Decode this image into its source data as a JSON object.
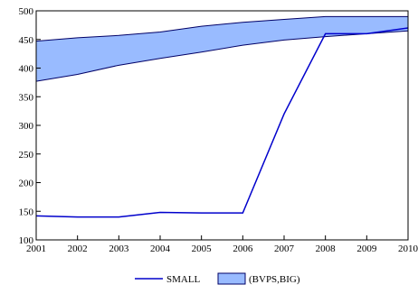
{
  "chart_data": {
    "type": "line",
    "title": "",
    "xlabel": "",
    "ylabel": "",
    "x": [
      2001,
      2002,
      2003,
      2004,
      2005,
      2006,
      2007,
      2008,
      2009,
      2010
    ],
    "xlim": [
      2001,
      2010
    ],
    "ylim": [
      100,
      500
    ],
    "yticks": [
      100,
      150,
      200,
      250,
      300,
      350,
      400,
      450,
      500
    ],
    "xtick_labels": [
      "2001",
      "2002",
      "2003",
      "2004",
      "2005",
      "2006",
      "2007",
      "2008",
      "2009",
      "2010"
    ],
    "ytick_labels": [
      "100",
      "150",
      "200",
      "250",
      "300",
      "350",
      "400",
      "450",
      "500"
    ],
    "grid": false,
    "legend_position": "bottom-center",
    "series": [
      {
        "name": "SMALL",
        "kind": "line",
        "color": "#0000cc",
        "values": [
          142,
          140,
          140,
          148,
          147,
          147,
          320,
          460,
          460,
          470
        ]
      }
    ],
    "band": {
      "name": "(BVPS,BIG)",
      "kind": "area-band",
      "fill": "#99bbff",
      "stroke": "#000066",
      "lower": [
        377,
        389,
        405,
        417,
        428,
        440,
        449,
        455,
        460,
        465
      ],
      "upper": [
        447,
        453,
        457,
        463,
        473,
        480,
        485,
        490,
        490,
        490
      ]
    }
  }
}
